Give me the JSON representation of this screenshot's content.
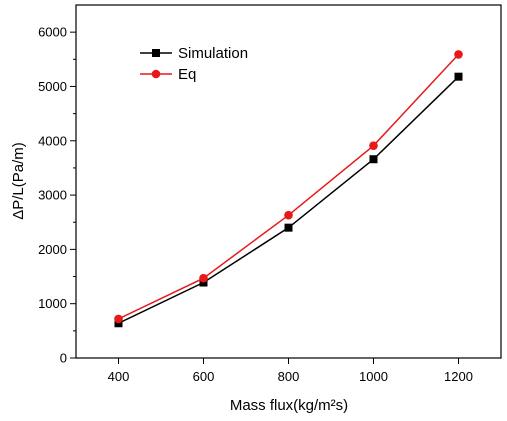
{
  "chart_data": {
    "type": "line",
    "title": "",
    "xlabel": "Mass flux(kg/m²s)",
    "ylabel": "ΔP/L(Pa/m)",
    "xlim": [
      300,
      1300
    ],
    "ylim": [
      0,
      6500
    ],
    "x_ticks": [
      400,
      600,
      800,
      1000,
      1200
    ],
    "y_ticks": [
      0,
      1000,
      2000,
      3000,
      4000,
      5000,
      6000
    ],
    "grid": false,
    "legend_position": "top-left",
    "x": [
      400,
      600,
      800,
      1000,
      1200
    ],
    "series": [
      {
        "name": "Simulation",
        "color": "#000000",
        "marker": "square",
        "values": [
          640,
          1390,
          2400,
          3660,
          5180
        ]
      },
      {
        "name": "Eq",
        "color": "#e8191b",
        "marker": "circle",
        "values": [
          720,
          1470,
          2630,
          3910,
          5590
        ]
      }
    ]
  }
}
